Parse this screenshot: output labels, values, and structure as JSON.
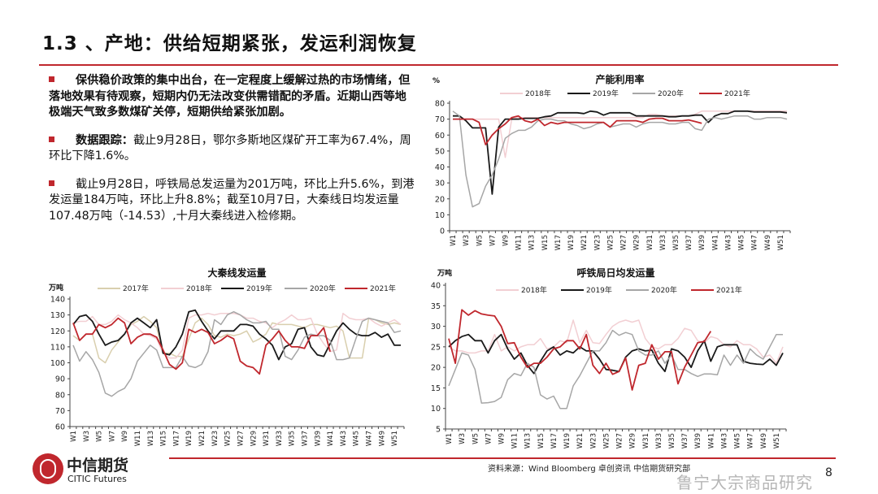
{
  "header": {
    "title": "1.3 、产地：供给短期紧张，发运利润恢复"
  },
  "bullets": [
    {
      "bold": "保供稳价政策的集中出台，在一定程度上缓解过热的市场情绪，但落地效果有待观察，短期内仍无法改变供需错配的矛盾。近期山西等地极端天气致多数煤矿关停，短期供给紧张加剧。",
      "text": ""
    },
    {
      "bold": "数据跟踪：",
      "text": "截止9月28日，鄂尔多斯地区煤矿开工率为67.4%，周环比下降1.6%。"
    },
    {
      "bold": "",
      "text": "截止9月28日，呼铁局总发运量为201万吨，环比上升5.6%，到港发运量184万吨，环比上升8.8%；截至10月7日，大秦线日均发运量107.48万吨（-14.53）,十月大秦线进入检修期。"
    }
  ],
  "footer": {
    "logo_cn": "中信期货",
    "logo_en": "CITIC Futures",
    "source": "资料来源：Wind Bloomberg 卓创资讯 中信期货研究部",
    "page": "8",
    "watermark": "鲁宁大宗商品研究"
  },
  "colors": {
    "accent": "#c0272d",
    "2017年": "#d9cfae",
    "2018年": "#f2cfd3",
    "2019年": "#1a1a1a",
    "2020年": "#a6a6a6",
    "2021年": "#c0272d"
  },
  "chart_data": [
    {
      "type": "line",
      "title": "产能利用率",
      "ylabel": "%",
      "ylim": [
        0,
        80
      ],
      "yticks": [
        0,
        10,
        20,
        30,
        40,
        50,
        60,
        70,
        80
      ],
      "legend": "top",
      "categories_label_every": 2,
      "x_prefix": "W",
      "x_count": 52,
      "series": [
        {
          "name": "2018年",
          "values": [
            70,
            70,
            70,
            70,
            70,
            70,
            70,
            70,
            46,
            70,
            71,
            71,
            71,
            71,
            71,
            71,
            71,
            71,
            71,
            71,
            71,
            71,
            71,
            71,
            71,
            71,
            71,
            71,
            71,
            71,
            73,
            73,
            72,
            72,
            72,
            72,
            72,
            73,
            75,
            75,
            75,
            75,
            75,
            75,
            75,
            75,
            75,
            75,
            75,
            75,
            75,
            75
          ]
        },
        {
          "name": "2019年",
          "values": [
            72,
            72,
            69,
            64.5,
            64.5,
            64.5,
            23,
            65,
            70,
            70,
            70,
            70.5,
            70.5,
            70.5,
            71.5,
            72,
            74,
            74,
            74,
            74,
            73.5,
            75,
            74.5,
            72.5,
            74,
            74,
            74,
            74,
            72,
            72,
            72,
            72,
            72,
            71.5,
            71.5,
            72,
            72,
            72.5,
            72.5,
            68,
            72,
            73.5,
            73.5,
            75,
            75,
            75,
            74.5,
            74.5,
            74.5,
            74.5,
            74.5,
            74
          ]
        },
        {
          "name": "2020年",
          "values": [
            75,
            72,
            35,
            15,
            17,
            28,
            35,
            45,
            58,
            61,
            63,
            63,
            65,
            69,
            70,
            70,
            69,
            69,
            67,
            66,
            64,
            65,
            67,
            68,
            65,
            66,
            67,
            67,
            65,
            67,
            68,
            68,
            68,
            67,
            67,
            68,
            68,
            64,
            63,
            70,
            71,
            70,
            71,
            72,
            72,
            72,
            70,
            70,
            71,
            71,
            71,
            70
          ]
        },
        {
          "name": "2021年",
          "values": [
            70,
            70,
            70,
            70,
            68,
            54,
            60,
            64,
            67,
            71,
            72,
            69,
            68,
            70,
            66,
            68,
            67,
            68,
            68,
            68,
            68,
            68,
            68,
            68,
            65,
            69,
            69,
            69,
            69,
            68,
            70,
            70.5,
            70.5,
            69,
            69,
            69,
            69.5,
            68.5,
            67.4
          ]
        }
      ]
    },
    {
      "type": "line",
      "title": "大秦线发运量",
      "ylabel": "万吨",
      "ylim": [
        60,
        140
      ],
      "yticks": [
        60,
        70,
        80,
        90,
        100,
        110,
        120,
        130,
        140
      ],
      "legend": "top",
      "categories_label_every": 2,
      "x_prefix": "W",
      "x_count": 52,
      "series": [
        {
          "name": "2017年",
          "values": [
            117,
            114,
            118,
            118,
            103,
            100,
            108,
            113,
            118,
            124,
            126,
            129,
            126,
            122,
            106,
            106,
            104,
            104,
            115,
            125,
            128,
            124,
            117,
            116,
            118,
            117,
            118,
            120,
            113,
            115,
            118,
            125,
            124,
            124,
            124,
            123,
            122,
            124,
            124,
            123,
            122,
            123,
            120,
            103,
            103,
            103,
            128,
            127,
            125,
            124,
            125,
            124
          ]
        },
        {
          "name": "2018年",
          "values": [
            125,
            126,
            126,
            129,
            124,
            124,
            126,
            130,
            127,
            125,
            122,
            118,
            117,
            115,
            106,
            103,
            103,
            108,
            128,
            130,
            130,
            131,
            130,
            131,
            131,
            131,
            130,
            128,
            128,
            126,
            125,
            122,
            125,
            127,
            130,
            127,
            127,
            128,
            118,
            112,
            107,
            108,
            131,
            128,
            127,
            127,
            128,
            125,
            123,
            125,
            127,
            124
          ]
        },
        {
          "name": "2019年",
          "values": [
            124,
            129,
            130,
            126,
            118,
            111,
            113,
            114,
            118,
            125,
            128,
            125,
            122,
            127,
            106,
            105,
            110,
            118,
            132,
            133,
            126,
            120,
            115,
            120,
            120,
            120,
            124,
            124,
            123,
            118,
            115,
            111,
            102,
            110,
            112,
            121,
            122,
            110,
            105,
            104,
            112,
            120,
            125,
            121,
            118,
            117,
            117,
            119,
            116,
            118,
            111,
            111
          ]
        },
        {
          "name": "2020年",
          "values": [
            111,
            101,
            107,
            102,
            94,
            81,
            79,
            82,
            84,
            90,
            101,
            106,
            111,
            108,
            97,
            97,
            97,
            104,
            98,
            97,
            99,
            107,
            127,
            124,
            130,
            132,
            130,
            127,
            125,
            125,
            126,
            121,
            121,
            104,
            102,
            108,
            116,
            118,
            117,
            117,
            114,
            102,
            102,
            103,
            115,
            126,
            128,
            127,
            126,
            125,
            119,
            120
          ]
        },
        {
          "name": "2021年",
          "values": [
            125,
            114,
            118,
            118,
            124,
            122,
            124,
            128,
            125,
            112,
            116,
            118,
            118,
            116,
            108,
            99,
            96,
            100,
            121,
            119,
            121,
            119,
            112,
            114,
            117,
            115,
            101,
            98,
            97,
            93,
            111,
            115,
            120,
            114,
            110,
            110,
            109,
            117,
            117,
            122,
            107
          ]
        }
      ]
    },
    {
      "type": "line",
      "title": "呼铁局日均发运量",
      "ylabel": "万吨",
      "ylim": [
        5,
        40
      ],
      "yticks": [
        5,
        10,
        15,
        20,
        25,
        30,
        35,
        40
      ],
      "legend": "top",
      "categories_label_every": 2,
      "x_prefix": "W",
      "x_count": 52,
      "series": [
        {
          "name": "2018年",
          "values": [
            25,
            24,
            24,
            23.5,
            23.5,
            24,
            24,
            28,
            24,
            25,
            24,
            25,
            25.5,
            25.5,
            27,
            24.5,
            25,
            26.5,
            26,
            31.5,
            26,
            29,
            26,
            25.8,
            28,
            30,
            31,
            31.5,
            31,
            31.5,
            27,
            25,
            24.5,
            25.5,
            25.5,
            27,
            29.5,
            29,
            26.5,
            26,
            27.5,
            27,
            25.5,
            25,
            26.5,
            25.5,
            25.5,
            24.5,
            22.5,
            23,
            21,
            25
          ]
        },
        {
          "name": "2019年",
          "values": [
            25,
            26.5,
            27.5,
            28,
            26.5,
            26.5,
            23.5,
            26.5,
            28,
            24.5,
            22,
            23.5,
            20.5,
            18.5,
            21.5,
            24,
            25,
            23,
            24,
            23.5,
            25,
            24,
            24,
            22,
            19.5,
            19.3,
            19,
            22.5,
            24,
            24.5,
            24,
            24.2,
            21,
            19,
            24.5,
            24,
            22.5,
            20,
            24,
            26.5,
            21.5,
            25,
            25.5,
            25.5,
            25.5,
            21.5,
            21,
            20.8,
            20.7,
            22,
            20.5,
            23.5
          ]
        },
        {
          "name": "2020年",
          "values": [
            15.5,
            19.5,
            23.5,
            23,
            19.5,
            11.3,
            11.4,
            11.7,
            12.7,
            17,
            18.5,
            18,
            21,
            20,
            13.3,
            12.3,
            13,
            10,
            10,
            15.5,
            18,
            21,
            24,
            24,
            26,
            29,
            27.8,
            28.5,
            28,
            24,
            23,
            23,
            24,
            21,
            23,
            19.5,
            19.5,
            18.5,
            17.8,
            18.4,
            18.4,
            18.2,
            23,
            20.5,
            23,
            21,
            24.5,
            23,
            22,
            25,
            28,
            28
          ]
        },
        {
          "name": "2021年",
          "values": [
            27,
            21,
            34,
            32.7,
            33.8,
            33,
            32.7,
            32.5,
            30,
            25.8,
            26,
            22.5,
            20,
            21,
            21,
            22.5,
            24.5,
            25,
            26.5,
            26.5,
            24.5,
            28,
            20.5,
            18.5,
            21,
            18.3,
            19,
            22.3,
            14.5,
            20.5,
            21,
            25.5,
            22,
            23.8,
            23.8,
            16,
            20,
            23,
            26,
            26.3,
            28.8
          ]
        }
      ]
    }
  ]
}
